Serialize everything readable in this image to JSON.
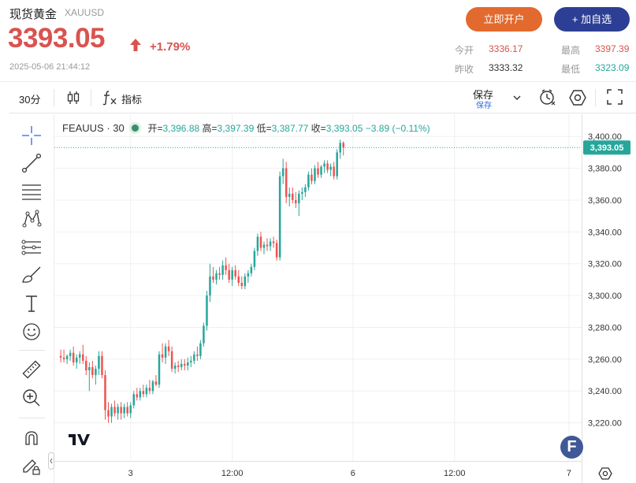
{
  "header": {
    "name": "现货黄金",
    "symbol": "XAUUSD",
    "price": "3393.05",
    "change_pct": "+1.79%",
    "datetime": "2025-05-06 21:44:12",
    "open_account_label": "立即开户",
    "add_watchlist_label": "+ 加自选",
    "stats": {
      "today_open_label": "今开",
      "today_open": "3336.17",
      "high_label": "最高",
      "high": "3397.39",
      "prev_close_label": "昨收",
      "prev_close": "3333.32",
      "low_label": "最低",
      "low": "3323.09"
    }
  },
  "toolbar": {
    "timeframe": "30分",
    "indicators_label": "指标",
    "save_label": "保存",
    "save_sub_label": "保存"
  },
  "legend": {
    "symbol": "FEAUUS · 30",
    "open_label": "开=",
    "open": "3,396.88",
    "high_label": "高=",
    "high": "3,397.39",
    "low_label": "低=",
    "low": "3,387.77",
    "close_label": "收=",
    "close": "3,393.05",
    "change": "−3.89 (−0.11%)"
  },
  "colors": {
    "up": "#26a69a",
    "down": "#ef5350",
    "price_red": "#d9534f",
    "accent": "#2d3f94"
  },
  "icons": [
    "bar-type-icon",
    "fx-icon",
    "chevron-down-icon",
    "alert-icon",
    "settings-hex-icon",
    "fullscreen-icon",
    "crosshair-icon",
    "trendline-icon",
    "horizontal-lines-icon",
    "pattern-icon",
    "fib-icon",
    "brush-icon",
    "text-icon",
    "emoji-icon",
    "ruler-icon",
    "zoom-in-icon",
    "magnet-icon",
    "lock-pencil-icon",
    "goto-realtime-icon"
  ],
  "chart_data": {
    "type": "candlestick",
    "y_axis": {
      "min": 3200,
      "max": 3410,
      "ticks": [
        3220,
        3240,
        3260,
        3280,
        3300,
        3320,
        3340,
        3360,
        3380,
        3400
      ],
      "tick_labels": [
        "3,220.00",
        "3,240.00",
        "3,260.00",
        "3,280.00",
        "3,300.00",
        "3,320.00",
        "3,340.00",
        "3,360.00",
        "3,380.00",
        "3,400.00"
      ]
    },
    "x_axis": {
      "ticks": [
        {
          "label": "3",
          "index": 22
        },
        {
          "label": "12:00",
          "index": 54
        },
        {
          "label": "6",
          "index": 92
        },
        {
          "label": "12:00",
          "index": 124
        },
        {
          "label": "7",
          "index": 160
        }
      ]
    },
    "last_price": 3393.05,
    "last_price_label": "3,393.05",
    "candles": [
      [
        3262,
        3266,
        3258,
        3261
      ],
      [
        3261,
        3266,
        3258,
        3260
      ],
      [
        3260,
        3263,
        3257,
        3262
      ],
      [
        3262,
        3266,
        3259,
        3264
      ],
      [
        3264,
        3268,
        3256,
        3258
      ],
      [
        3258,
        3263,
        3254,
        3261
      ],
      [
        3261,
        3265,
        3257,
        3263
      ],
      [
        3263,
        3269,
        3257,
        3259
      ],
      [
        3259,
        3262,
        3250,
        3253
      ],
      [
        3253,
        3258,
        3240,
        3255
      ],
      [
        3255,
        3259,
        3248,
        3250
      ],
      [
        3250,
        3256,
        3244,
        3254
      ],
      [
        3254,
        3265,
        3250,
        3262
      ],
      [
        3262,
        3265,
        3248,
        3250
      ],
      [
        3250,
        3253,
        3222,
        3228
      ],
      [
        3228,
        3233,
        3220,
        3224
      ],
      [
        3224,
        3232,
        3220,
        3230
      ],
      [
        3230,
        3234,
        3224,
        3226
      ],
      [
        3226,
        3232,
        3222,
        3230
      ],
      [
        3230,
        3233,
        3222,
        3226
      ],
      [
        3226,
        3232,
        3223,
        3230
      ],
      [
        3230,
        3233,
        3224,
        3226
      ],
      [
        3226,
        3233,
        3223,
        3231
      ],
      [
        3231,
        3240,
        3229,
        3238
      ],
      [
        3238,
        3242,
        3234,
        3236
      ],
      [
        3236,
        3242,
        3234,
        3240
      ],
      [
        3240,
        3244,
        3236,
        3238
      ],
      [
        3238,
        3244,
        3236,
        3242
      ],
      [
        3242,
        3247,
        3238,
        3240
      ],
      [
        3240,
        3247,
        3238,
        3246
      ],
      [
        3246,
        3250,
        3243,
        3244
      ],
      [
        3244,
        3265,
        3242,
        3263
      ],
      [
        3263,
        3270,
        3258,
        3261
      ],
      [
        3261,
        3270,
        3257,
        3268
      ],
      [
        3268,
        3272,
        3262,
        3265
      ],
      [
        3265,
        3268,
        3252,
        3254
      ],
      [
        3254,
        3258,
        3251,
        3256
      ],
      [
        3256,
        3259,
        3252,
        3255
      ],
      [
        3255,
        3260,
        3253,
        3257
      ],
      [
        3257,
        3260,
        3253,
        3256
      ],
      [
        3256,
        3261,
        3253,
        3258
      ],
      [
        3258,
        3262,
        3255,
        3259
      ],
      [
        3259,
        3265,
        3257,
        3263
      ],
      [
        3263,
        3268,
        3259,
        3262
      ],
      [
        3262,
        3272,
        3260,
        3270
      ],
      [
        3270,
        3283,
        3268,
        3281
      ],
      [
        3281,
        3303,
        3278,
        3300
      ],
      [
        3300,
        3320,
        3296,
        3312
      ],
      [
        3312,
        3318,
        3308,
        3310
      ],
      [
        3310,
        3316,
        3307,
        3314
      ],
      [
        3314,
        3318,
        3310,
        3313
      ],
      [
        3313,
        3322,
        3310,
        3319
      ],
      [
        3319,
        3324,
        3313,
        3316
      ],
      [
        3316,
        3320,
        3308,
        3310
      ],
      [
        3310,
        3318,
        3306,
        3316
      ],
      [
        3316,
        3319,
        3310,
        3312
      ],
      [
        3312,
        3316,
        3306,
        3308
      ],
      [
        3308,
        3312,
        3304,
        3306
      ],
      [
        3306,
        3314,
        3304,
        3312
      ],
      [
        3312,
        3316,
        3308,
        3314
      ],
      [
        3314,
        3320,
        3312,
        3318
      ],
      [
        3318,
        3330,
        3316,
        3328
      ],
      [
        3328,
        3339,
        3325,
        3337
      ],
      [
        3337,
        3340,
        3328,
        3330
      ],
      [
        3330,
        3334,
        3326,
        3332
      ],
      [
        3332,
        3336,
        3328,
        3331
      ],
      [
        3331,
        3336,
        3328,
        3334
      ],
      [
        3334,
        3337,
        3330,
        3333
      ],
      [
        3333,
        3335,
        3322,
        3324
      ],
      [
        3324,
        3378,
        3322,
        3375
      ],
      [
        3375,
        3386,
        3370,
        3380
      ],
      [
        3380,
        3384,
        3358,
        3362
      ],
      [
        3362,
        3368,
        3356,
        3364
      ],
      [
        3364,
        3368,
        3358,
        3360
      ],
      [
        3360,
        3365,
        3355,
        3358
      ],
      [
        3358,
        3366,
        3350,
        3364
      ],
      [
        3364,
        3368,
        3360,
        3365
      ],
      [
        3365,
        3370,
        3362,
        3368
      ],
      [
        3368,
        3378,
        3366,
        3376
      ],
      [
        3376,
        3380,
        3370,
        3372
      ],
      [
        3372,
        3382,
        3370,
        3380
      ],
      [
        3380,
        3384,
        3374,
        3376
      ],
      [
        3376,
        3382,
        3374,
        3381
      ],
      [
        3381,
        3385,
        3377,
        3383
      ],
      [
        3383,
        3385,
        3377,
        3379
      ],
      [
        3379,
        3383,
        3375,
        3381
      ],
      [
        3381,
        3384,
        3373,
        3375
      ],
      [
        3375,
        3392,
        3373,
        3390
      ],
      [
        3390,
        3398,
        3386,
        3396
      ],
      [
        3396,
        3397,
        3388,
        3393
      ]
    ],
    "x_range": [
      -2,
      164
    ]
  }
}
